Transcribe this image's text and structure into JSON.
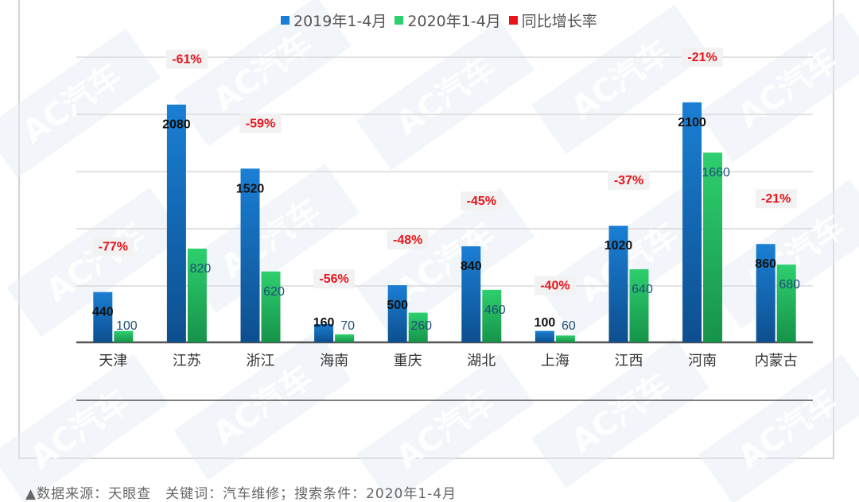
{
  "legend": {
    "series1": "2019年1-4月",
    "series2": "2020年1-4月",
    "series3": "同比增长率"
  },
  "colors": {
    "series1_top": "#1a7fd4",
    "series1_bottom": "#0d4f8f",
    "series2_top": "#2ecf6e",
    "series2_bottom": "#16934a",
    "growth": "#e8141c",
    "growth_bg": "#f2f2f2",
    "grid": "#d9d9d9",
    "axis": "#555555",
    "watermark": "#e6edf5"
  },
  "watermark_text": "AC汽车",
  "source_note": "▲数据来源：天眼查　关键词：汽车维修；搜索条件：2020年1-4月",
  "chart_data": {
    "type": "bar",
    "categories": [
      "天津",
      "江苏",
      "浙江",
      "海南",
      "重庆",
      "湖北",
      "上海",
      "江西",
      "河南",
      "内蒙古"
    ],
    "series": [
      {
        "name": "2019年1-4月",
        "values": [
          440,
          2080,
          1520,
          160,
          500,
          840,
          100,
          1020,
          2100,
          860
        ]
      },
      {
        "name": "2020年1-4月",
        "values": [
          100,
          820,
          620,
          70,
          260,
          460,
          60,
          640,
          1660,
          680
        ]
      }
    ],
    "growth": {
      "name": "同比增长率",
      "labels": [
        "-77%",
        "-61%",
        "-59%",
        "-56%",
        "-48%",
        "-45%",
        "-40%",
        "-37%",
        "-21%",
        "-21%"
      ]
    },
    "ylim": [
      0,
      2500
    ],
    "grid": true,
    "legend_position": "top-center"
  }
}
